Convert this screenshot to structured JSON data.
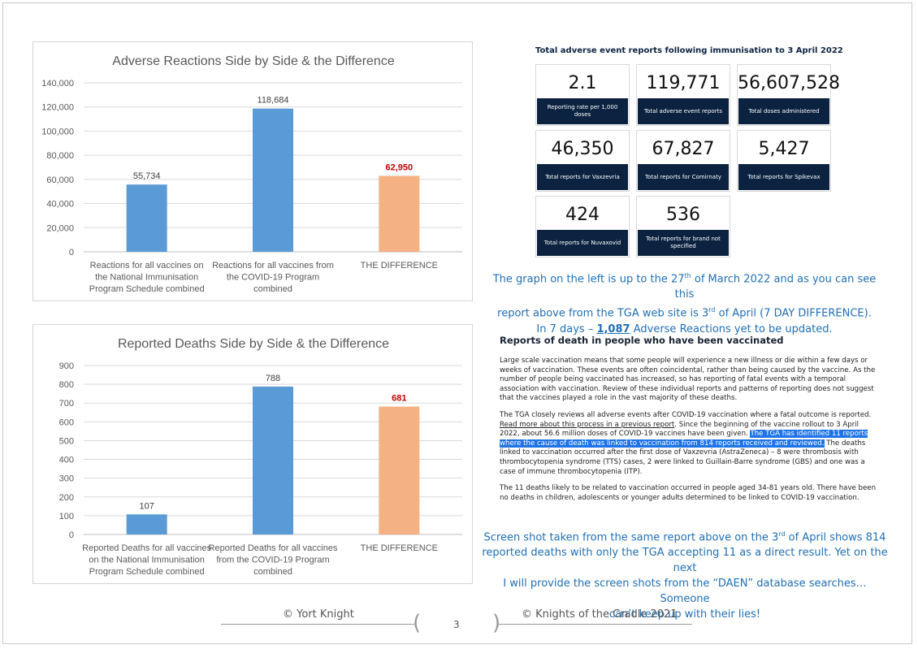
{
  "chart_data": [
    {
      "type": "bar",
      "title": "Adverse Reactions Side by Side & the Difference",
      "categories": [
        [
          "Reactions for all vaccines on",
          "the National Immunisation",
          "Program Schedule combined"
        ],
        [
          "Reactions for all vaccines from",
          "the COVID-19 Program",
          "combined"
        ],
        [
          "THE DIFFERENCE"
        ]
      ],
      "values": [
        55734,
        118684,
        62950
      ],
      "value_labels": [
        "55,734",
        "118,684",
        "62,950"
      ],
      "colors": [
        "#5b9bd5",
        "#5b9bd5",
        "#f4b183"
      ],
      "label_colors": [
        "#404040",
        "#404040",
        "#c00000"
      ],
      "yticks": [
        "0",
        "20,000",
        "40,000",
        "60,000",
        "80,000",
        "100,000",
        "120,000",
        "140,000"
      ],
      "ylim": [
        0,
        140000
      ],
      "grid": true
    },
    {
      "type": "bar",
      "title": "Reported Deaths Side by Side & the Difference",
      "categories": [
        [
          "Reported Deaths for all vaccines",
          "on the National Immunisation",
          "Program Schedule combined"
        ],
        [
          "Reported Deaths for all vaccines",
          "from the COVID-19 Program",
          "combined"
        ],
        [
          "THE DIFFERENCE"
        ]
      ],
      "values": [
        107,
        788,
        681
      ],
      "value_labels": [
        "107",
        "788",
        "681"
      ],
      "colors": [
        "#5b9bd5",
        "#5b9bd5",
        "#f4b183"
      ],
      "label_colors": [
        "#404040",
        "#404040",
        "#c00000"
      ],
      "yticks": [
        "0",
        "100",
        "200",
        "300",
        "400",
        "500",
        "600",
        "700",
        "800",
        "900"
      ],
      "ylim": [
        0,
        900
      ],
      "grid": true
    }
  ],
  "stats": {
    "title": "Total adverse event reports following immunisation to 3 April 2022",
    "tiles": [
      {
        "value": "2.1",
        "label": "Reporting rate per 1,000 doses"
      },
      {
        "value": "119,771",
        "label": "Total adverse event reports"
      },
      {
        "value": "56,607,528",
        "label": "Total doses administered"
      },
      {
        "value": "46,350",
        "label": "Total reports for Vaxzevria"
      },
      {
        "value": "67,827",
        "label": "Total reports for Comirnaty"
      },
      {
        "value": "5,427",
        "label": "Total reports for Spikevax"
      },
      {
        "value": "424",
        "label": "Total reports for Nuvaxovid"
      },
      {
        "value": "536",
        "label": "Total reports for brand not specified"
      }
    ]
  },
  "note1": {
    "l1a": "The graph on the left is up to the 27",
    "l1sup": "th",
    "l1b": " of March 2022 and as you can see this",
    "l2a": "report above from the TGA web site is 3",
    "l2sup": "rd",
    "l2b": " of April (7 DAY DIFFERENCE).",
    "l3a": "In 7 days – ",
    "l3num": "1,087",
    "l3b": " Adverse Reactions yet to be updated."
  },
  "report": {
    "heading": "Reports of death in people who have been vaccinated",
    "p1": "Large scale vaccination means that some people will experience a new illness or die within a few days or weeks of vaccination. These events are often coincidental, rather than being caused by the vaccine. As the number of people being vaccinated has increased, so has reporting of fatal events with a temporal association with vaccination. Review of these individual reports and patterns of reporting does not suggest that the vaccines played a role in the vast majority of these deaths.",
    "p2a": "The TGA closely reviews all adverse events after COVID-19 vaccination where a fatal outcome is reported. ",
    "p2link": "Read more about this process in a previous report",
    "p2b": ". Since the beginning of the vaccine rollout to 3 April 2022, about 56.6 million doses of COVID-19 vaccines have been given. ",
    "p2hl": "The TGA has identified 11 reports where the cause of death was linked to vaccination from 814 reports received and reviewed.",
    "p2c": " The deaths linked to vaccination occurred after the first dose of Vaxzevria (AstraZeneca) – 8 were thrombosis with thrombocytopenia syndrome (TTS) cases, 2 were linked to Guillain-Barre syndrome (GBS) and one was a case of immune thrombocytopenia (ITP).",
    "p3": "The 11 deaths likely to be related to vaccination occurred in people aged 34-81 years old. There have been no deaths in children, adolescents or younger adults determined to be linked to COVID-19 vaccination."
  },
  "note2": {
    "l1a": "Screen shot taken from the same report above on the 3",
    "l1sup": "rd",
    "l1b": " of April shows 814",
    "l2": "reported deaths with only the TGA accepting 11 as a direct result. Yet on the next",
    "l3": "I will provide the screen shots from the “DAEN” database searches… Someone",
    "l4": "can’t keep up with their lies!"
  },
  "footer": {
    "left": "© Yort Knight",
    "page": "3",
    "right": "© Knights of the Cradle 2021"
  }
}
